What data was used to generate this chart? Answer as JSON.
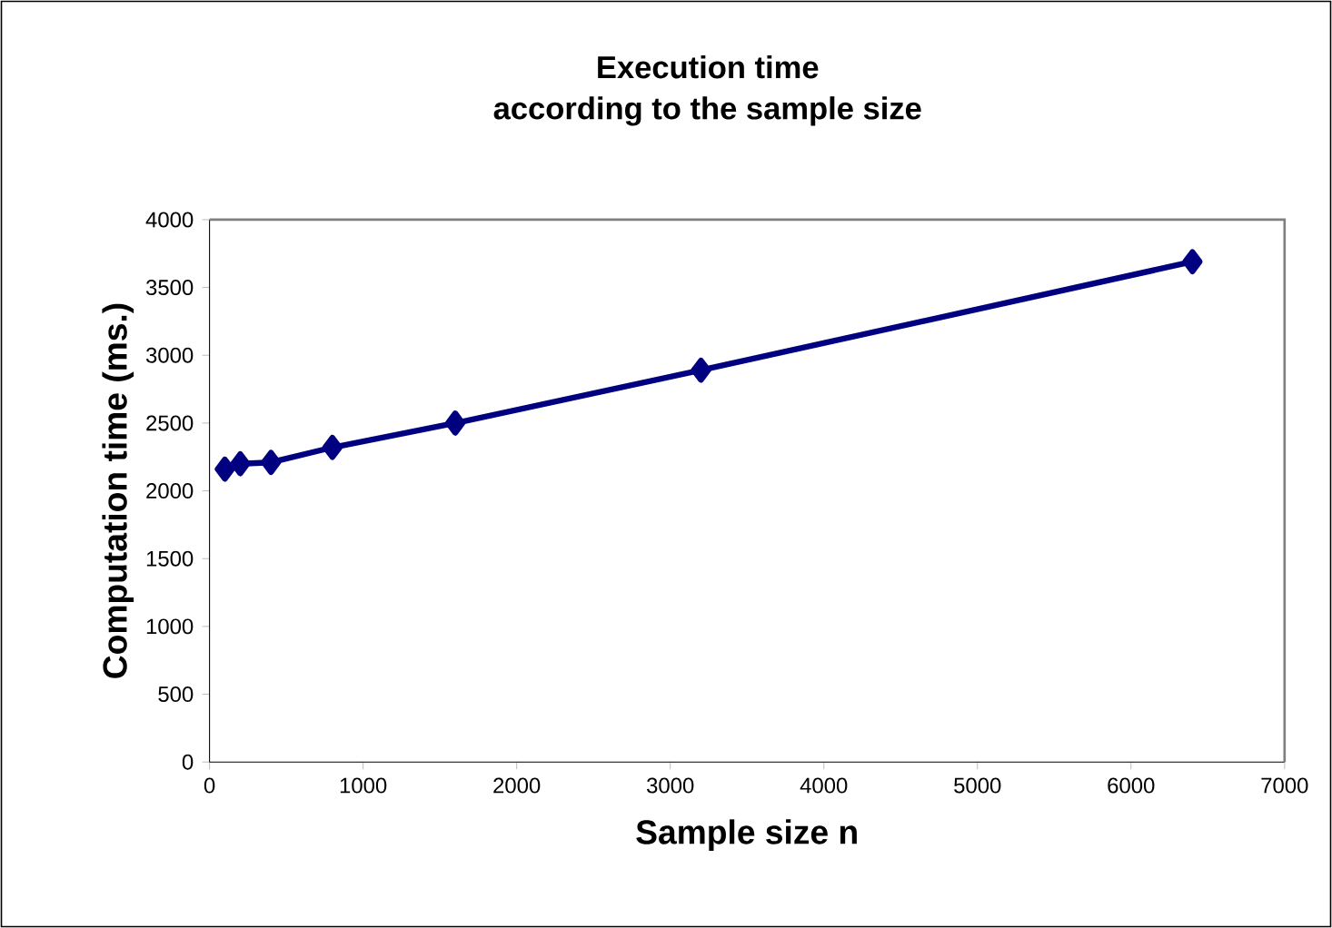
{
  "chart_data": {
    "type": "line",
    "title": "Execution time\naccording to the sample size",
    "xlabel": "Sample size n",
    "ylabel": "Computation time (ms.)",
    "x": [
      100,
      200,
      400,
      800,
      1600,
      3200,
      6400
    ],
    "series": [
      {
        "color": "#000080",
        "values": [
          2160,
          2200,
          2210,
          2320,
          2500,
          2890,
          3690
        ]
      }
    ],
    "xlim": [
      0,
      7000
    ],
    "xticks": [
      0,
      1000,
      2000,
      3000,
      4000,
      5000,
      6000,
      7000
    ],
    "ylim": [
      0,
      4000
    ],
    "yticks": [
      0,
      500,
      1000,
      1500,
      2000,
      2500,
      3000,
      3500,
      4000
    ],
    "marker": "diamond",
    "line_style": "solid",
    "grid": false
  }
}
